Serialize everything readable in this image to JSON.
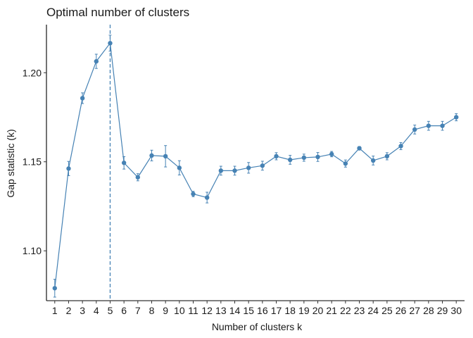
{
  "chart_data": {
    "type": "line",
    "title": "Optimal number of clusters",
    "xlabel": "Number of clusters k",
    "ylabel": "Gap statistic (k)",
    "ylim": [
      1.072,
      1.227
    ],
    "y_ticks": [
      1.1,
      1.15,
      1.2
    ],
    "y_tick_labels": [
      "1.10",
      "1.15",
      "1.20"
    ],
    "optimal_k": 5,
    "line_color": "#4682B4",
    "grid": false,
    "x": [
      1,
      2,
      3,
      4,
      5,
      6,
      7,
      8,
      9,
      10,
      11,
      12,
      13,
      14,
      15,
      16,
      17,
      18,
      19,
      20,
      21,
      22,
      23,
      24,
      25,
      26,
      27,
      28,
      29,
      30
    ],
    "x_tick_labels": [
      "1",
      "2",
      "3",
      "4",
      "5",
      "6",
      "7",
      "8",
      "9",
      "10",
      "11",
      "12",
      "13",
      "14",
      "15",
      "16",
      "17",
      "18",
      "19",
      "20",
      "21",
      "22",
      "23",
      "24",
      "25",
      "26",
      "27",
      "28",
      "29",
      "30"
    ],
    "series": [
      {
        "values": [
          1.079,
          1.1462,
          1.1857,
          1.2064,
          1.2166,
          1.1494,
          1.1413,
          1.1535,
          1.1531,
          1.1466,
          1.1319,
          1.1299,
          1.145,
          1.145,
          1.1466,
          1.1478,
          1.1531,
          1.1511,
          1.1523,
          1.1527,
          1.1543,
          1.149,
          1.1576,
          1.1507,
          1.1531,
          1.1588,
          1.1681,
          1.1702,
          1.1702,
          1.175
        ],
        "error": [
          0.005,
          0.004,
          0.003,
          0.004,
          0.0045,
          0.0035,
          0.002,
          0.003,
          0.006,
          0.004,
          0.0015,
          0.003,
          0.0025,
          0.0025,
          0.003,
          0.0025,
          0.002,
          0.0025,
          0.002,
          0.0025,
          0.0015,
          0.002,
          0.001,
          0.0025,
          0.002,
          0.002,
          0.0025,
          0.0025,
          0.0025,
          0.002
        ]
      }
    ]
  }
}
